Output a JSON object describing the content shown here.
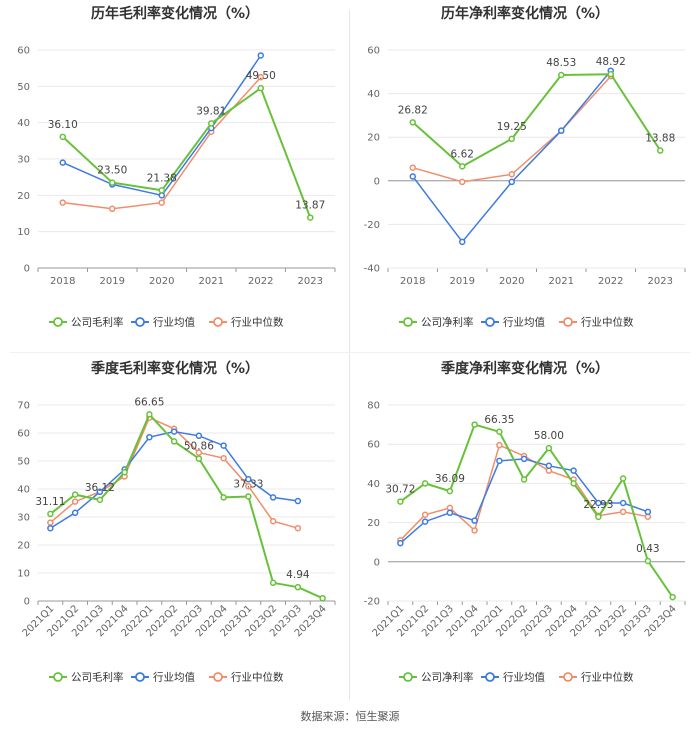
{
  "source": "数据来源：恒生聚源",
  "colors": {
    "company": "#67c23a",
    "avg": "#3d7be0",
    "median": "#f08e6b"
  },
  "chart_data": [
    {
      "type": "line",
      "title": "历年毛利率变化情况（%）",
      "categories": [
        "2018",
        "2019",
        "2020",
        "2021",
        "2022",
        "2023"
      ],
      "ylim": [
        0,
        60
      ],
      "yticks": [
        0,
        10,
        20,
        30,
        40,
        50,
        60
      ],
      "rotate_x": false,
      "series": [
        {
          "name": "公司毛利率",
          "key": "company",
          "values": [
            36.1,
            23.5,
            21.38,
            39.81,
            49.5,
            13.87
          ],
          "labels": [
            "36.10",
            "23.50",
            "21.38",
            "39.81",
            "49.50",
            "13.87"
          ]
        },
        {
          "name": "行业均值",
          "key": "avg",
          "values": [
            29.0,
            23.0,
            20.0,
            38.5,
            58.5,
            null
          ]
        },
        {
          "name": "行业中位数",
          "key": "median",
          "values": [
            18.0,
            16.3,
            18.0,
            37.5,
            52.5,
            null
          ]
        }
      ]
    },
    {
      "type": "line",
      "title": "历年净利率变化情况（%）",
      "categories": [
        "2018",
        "2019",
        "2020",
        "2021",
        "2022",
        "2023"
      ],
      "ylim": [
        -40,
        60
      ],
      "yticks": [
        -40,
        -20,
        0,
        20,
        40,
        60
      ],
      "rotate_x": false,
      "series": [
        {
          "name": "公司净利率",
          "key": "company",
          "values": [
            26.82,
            6.62,
            19.25,
            48.53,
            48.92,
            13.88
          ],
          "labels": [
            "26.82",
            "6.62",
            "19.25",
            "48.53",
            "48.92",
            "13.88"
          ]
        },
        {
          "name": "行业均值",
          "key": "avg",
          "values": [
            2.0,
            -28.0,
            -0.5,
            23.0,
            50.5,
            null
          ]
        },
        {
          "name": "行业中位数",
          "key": "median",
          "values": [
            6.0,
            -0.5,
            3.0,
            23.0,
            48.0,
            null
          ]
        }
      ]
    },
    {
      "type": "line",
      "title": "季度毛利率变化情况（%）",
      "categories": [
        "2021Q1",
        "2021Q2",
        "2021Q3",
        "2021Q4",
        "2022Q1",
        "2022Q2",
        "2022Q3",
        "2022Q4",
        "2023Q1",
        "2023Q2",
        "2023Q3",
        "2023Q4"
      ],
      "ylim": [
        0,
        70
      ],
      "yticks": [
        0,
        10,
        20,
        30,
        40,
        50,
        60,
        70
      ],
      "rotate_x": true,
      "series": [
        {
          "name": "公司毛利率",
          "key": "company",
          "values": [
            31.11,
            38.0,
            36.12,
            46.0,
            66.65,
            57.0,
            50.86,
            37.0,
            37.33,
            6.5,
            4.94,
            1.0
          ],
          "labels": [
            "31.11",
            null,
            "36.12",
            null,
            "66.65",
            null,
            "50.86",
            null,
            "37.33",
            null,
            "4.94",
            null
          ]
        },
        {
          "name": "行业均值",
          "key": "avg",
          "values": [
            26.0,
            31.5,
            39.0,
            47.0,
            58.5,
            60.5,
            59.0,
            55.5,
            43.5,
            37.0,
            35.7,
            null
          ]
        },
        {
          "name": "行业中位数",
          "key": "median",
          "values": [
            28.0,
            35.5,
            39.0,
            44.5,
            65.5,
            61.5,
            53.0,
            51.0,
            41.0,
            28.5,
            26.0,
            null
          ]
        }
      ]
    },
    {
      "type": "line",
      "title": "季度净利率变化情况（%）",
      "categories": [
        "2021Q1",
        "2021Q2",
        "2021Q3",
        "2021Q4",
        "2022Q1",
        "2022Q2",
        "2022Q3",
        "2022Q4",
        "2023Q1",
        "2023Q2",
        "2023Q3",
        "2023Q4"
      ],
      "ylim": [
        -20,
        80
      ],
      "yticks": [
        -20,
        0,
        20,
        40,
        60,
        80
      ],
      "rotate_x": true,
      "series": [
        {
          "name": "公司净利率",
          "key": "company",
          "values": [
            30.72,
            40.0,
            36.09,
            70.0,
            66.35,
            42.0,
            58.0,
            40.0,
            22.93,
            42.5,
            0.43,
            -18.0
          ],
          "labels": [
            "30.72",
            null,
            "36.09",
            null,
            "66.35",
            null,
            "58.00",
            null,
            "22.93",
            null,
            "0.43",
            null
          ]
        },
        {
          "name": "行业均值",
          "key": "avg",
          "values": [
            9.5,
            20.5,
            25.0,
            21.0,
            51.5,
            52.5,
            49.0,
            46.5,
            30.0,
            30.0,
            25.5,
            null
          ]
        },
        {
          "name": "行业中位数",
          "key": "median",
          "values": [
            11.0,
            24.0,
            27.5,
            16.0,
            59.5,
            54.0,
            46.5,
            42.0,
            23.5,
            25.5,
            23.0,
            null
          ]
        }
      ]
    }
  ]
}
